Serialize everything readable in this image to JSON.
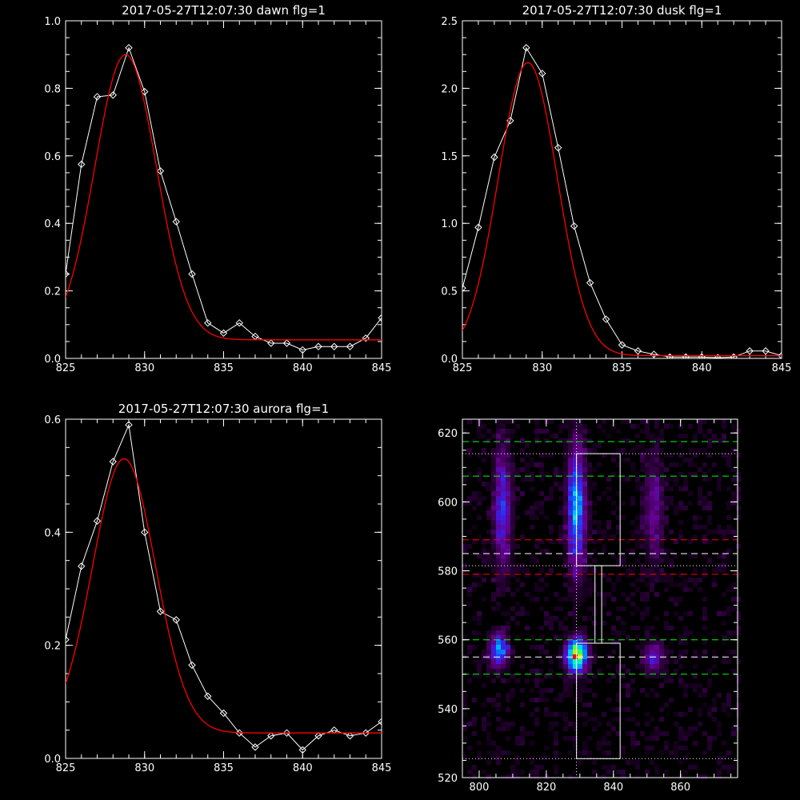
{
  "chart_data": [
    {
      "type": "line",
      "title": "2017-05-27T12:07:30 dawn flg=1",
      "xlim": [
        825,
        845
      ],
      "ylim": [
        0,
        1.0
      ],
      "xticks": [
        825,
        830,
        835,
        840,
        845
      ],
      "yticks": [
        0.0,
        0.2,
        0.4,
        0.6,
        0.8,
        1.0
      ],
      "ytick_labels": [
        "0.0",
        "0.2",
        "0.4",
        "0.6",
        "0.8",
        "1.0"
      ],
      "series": [
        {
          "color": "#ffffff",
          "marker": "diamond",
          "x": [
            825,
            826,
            827,
            828,
            829,
            830,
            831,
            832,
            833,
            834,
            835,
            836,
            837,
            838,
            839,
            840,
            841,
            842,
            843,
            844,
            845
          ],
          "y": [
            0.25,
            0.575,
            0.775,
            0.78,
            0.92,
            0.79,
            0.555,
            0.405,
            0.25,
            0.105,
            0.075,
            0.105,
            0.065,
            0.045,
            0.045,
            0.025,
            0.035,
            0.035,
            0.035,
            0.06,
            0.12
          ]
        },
        {
          "color": "#ff0000",
          "fit": "gaussian",
          "amp": 0.845,
          "center": 828.8,
          "sigma": 1.95,
          "offset": 0.055
        }
      ]
    },
    {
      "type": "line",
      "title": "2017-05-27T12:07:30 dusk flg=1",
      "xlim": [
        825,
        845
      ],
      "ylim": [
        0,
        2.5
      ],
      "xticks": [
        825,
        830,
        835,
        840,
        845
      ],
      "yticks": [
        0.0,
        0.5,
        1.0,
        1.5,
        2.0,
        2.5
      ],
      "ytick_labels": [
        "0.0",
        "0.5",
        "1.0",
        "1.5",
        "2.0",
        "2.5"
      ],
      "series": [
        {
          "color": "#ffffff",
          "marker": "diamond",
          "x": [
            825,
            826,
            827,
            828,
            829,
            830,
            831,
            832,
            833,
            834,
            835,
            836,
            837,
            838,
            839,
            840,
            841,
            842,
            843,
            844,
            845
          ],
          "y": [
            0.52,
            0.97,
            1.49,
            1.76,
            2.3,
            2.11,
            1.56,
            0.98,
            0.56,
            0.29,
            0.1,
            0.055,
            0.03,
            0.01,
            0.01,
            0.01,
            0.005,
            0.01,
            0.055,
            0.055,
            0.02
          ]
        },
        {
          "color": "#ff0000",
          "fit": "gaussian",
          "amp": 2.17,
          "center": 829.1,
          "sigma": 1.85,
          "offset": 0.02
        }
      ]
    },
    {
      "type": "line",
      "title": "2017-05-27T12:07:30 aurora flg=1",
      "xlim": [
        825,
        845
      ],
      "ylim": [
        0,
        0.6
      ],
      "xticks": [
        825,
        830,
        835,
        840,
        845
      ],
      "yticks": [
        0.0,
        0.2,
        0.4,
        0.6
      ],
      "ytick_labels": [
        "0.0",
        "0.2",
        "0.4",
        "0.6"
      ],
      "series": [
        {
          "color": "#ffffff",
          "marker": "diamond",
          "x": [
            825,
            826,
            827,
            828,
            829,
            830,
            831,
            832,
            833,
            834,
            835,
            836,
            837,
            838,
            839,
            840,
            841,
            842,
            843,
            844,
            845
          ],
          "y": [
            0.21,
            0.34,
            0.42,
            0.525,
            0.59,
            0.4,
            0.26,
            0.245,
            0.165,
            0.11,
            0.08,
            0.045,
            0.02,
            0.04,
            0.045,
            0.015,
            0.04,
            0.05,
            0.04,
            0.045,
            0.065
          ]
        },
        {
          "color": "#ff0000",
          "fit": "gaussian",
          "amp": 0.485,
          "center": 828.7,
          "sigma": 2.0,
          "offset": 0.045
        }
      ]
    },
    {
      "type": "heatmap",
      "title": "",
      "xlim": [
        795,
        877
      ],
      "ylim": [
        520,
        624
      ],
      "xticks": [
        800,
        820,
        840,
        860
      ],
      "yticks": [
        520,
        540,
        560,
        580,
        600,
        620
      ],
      "blobs": [
        {
          "x": 806,
          "y": 557,
          "sx": 1.8,
          "sy": 3.0,
          "amp": 0.55
        },
        {
          "x": 829,
          "y": 555.5,
          "sx": 2.0,
          "sy": 3.0,
          "amp": 1.0
        },
        {
          "x": 852,
          "y": 555,
          "sx": 2.0,
          "sy": 3.0,
          "amp": 0.28
        },
        {
          "x": 807,
          "y": 598,
          "sx": 1.7,
          "sy": 12.0,
          "amp": 0.35
        },
        {
          "x": 829,
          "y": 598,
          "sx": 1.8,
          "sy": 12.0,
          "amp": 0.55
        },
        {
          "x": 852,
          "y": 598,
          "sx": 2.0,
          "sy": 10.0,
          "amp": 0.2
        }
      ],
      "hlines": [
        {
          "y": 617.5,
          "color": "#00ff00",
          "style": "dashed"
        },
        {
          "y": 607.5,
          "color": "#00ff00",
          "style": "dashed"
        },
        {
          "y": 614,
          "color": "#ffffff",
          "style": "dotted"
        },
        {
          "y": 589,
          "color": "#ff0000",
          "style": "dashed"
        },
        {
          "y": 585,
          "color": "#ffffff",
          "style": "dashed"
        },
        {
          "y": 581.5,
          "color": "#ffffff",
          "style": "dotted"
        },
        {
          "y": 579,
          "color": "#ff0000",
          "style": "dashed"
        },
        {
          "y": 560,
          "color": "#00ff00",
          "style": "dashed"
        },
        {
          "y": 555,
          "color": "#ffffff",
          "style": "dashed"
        },
        {
          "y": 550,
          "color": "#00ff00",
          "style": "dashed"
        },
        {
          "y": 525.5,
          "color": "#ffffff",
          "style": "dotted"
        }
      ],
      "vlines": [
        {
          "x": 829,
          "color": "#ffffff",
          "style": "dotted"
        }
      ],
      "boxes": [
        {
          "x0": 829,
          "x1": 842,
          "y0": 581.5,
          "y1": 614
        },
        {
          "x0": 834.5,
          "x1": 836.5,
          "y0": 559,
          "y1": 581.5
        },
        {
          "x0": 829,
          "x1": 842,
          "y0": 525.5,
          "y1": 559
        }
      ]
    }
  ]
}
